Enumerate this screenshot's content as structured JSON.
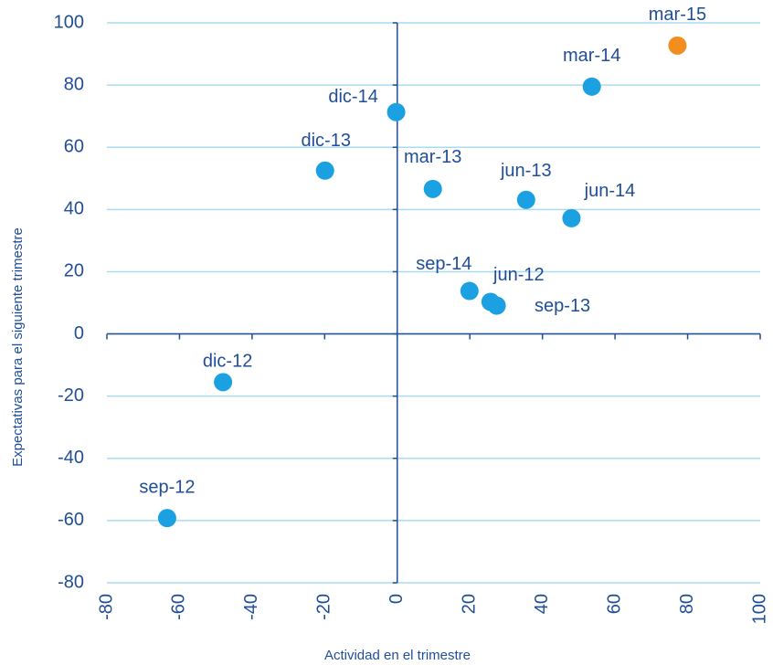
{
  "chart_data": {
    "type": "scatter",
    "x_label": "Actividad en el trimestre",
    "y_label": "Expectativas  para el siguiente trimestre",
    "labels": [
      "sep-12",
      "dic-12",
      "mar-13",
      "jun-13",
      "sep-13",
      "dic-13",
      "mar-14",
      "jun-14",
      "sep-14",
      "dic-14",
      "mar-15",
      "jun-12"
    ],
    "x": [
      -63.4,
      -48,
      9.8,
      35.5,
      27.4,
      -19.9,
      53.6,
      48,
      19.9,
      -0.3,
      77.2,
      25.7
    ],
    "values": [
      -59.2,
      -15.5,
      46.6,
      43.1,
      9.1,
      52.5,
      79.5,
      37.2,
      13.8,
      71.3,
      92.7,
      10.3
    ],
    "colors": [
      "#1ba1e2",
      "#1ba1e2",
      "#1ba1e2",
      "#1ba1e2",
      "#1ba1e2",
      "#1ba1e2",
      "#1ba1e2",
      "#1ba1e2",
      "#1ba1e2",
      "#1ba1e2",
      "#f28e1e",
      "#1ba1e2"
    ],
    "xlim": [
      -80,
      100
    ],
    "xticks": [
      -80,
      -60,
      -40,
      -20,
      0,
      20,
      40,
      60,
      80,
      100
    ],
    "ylim": [
      -80,
      100
    ],
    "yticks": [
      -80,
      -60,
      -40,
      -20,
      0,
      20,
      40,
      60,
      80,
      100
    ],
    "grid": true
  }
}
